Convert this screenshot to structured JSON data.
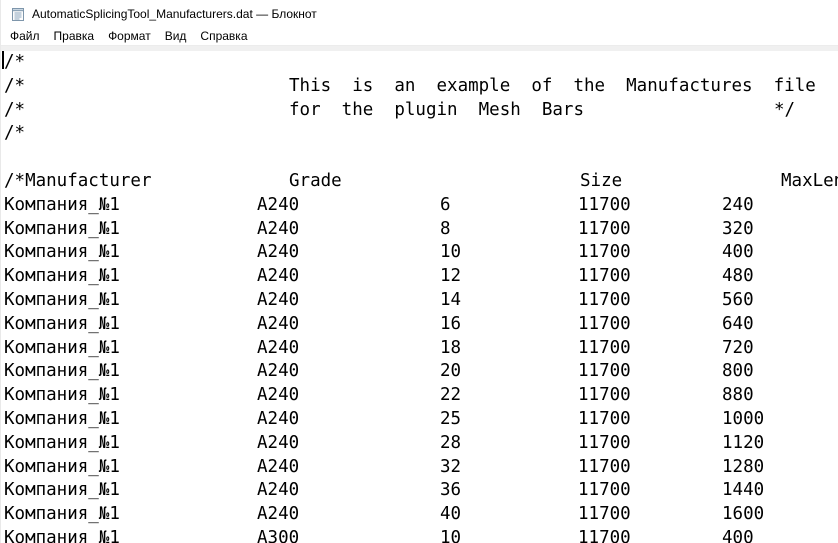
{
  "titlebar": {
    "title": "AutomaticSplicingTool_Manufacturers.dat — Блокнот"
  },
  "menubar": {
    "items": [
      {
        "label": "Файл"
      },
      {
        "label": "Правка"
      },
      {
        "label": "Формат"
      },
      {
        "label": "Вид"
      },
      {
        "label": "Справка"
      }
    ]
  },
  "editor": {
    "comment": {
      "line1": "/*",
      "line2_prefix": "/*",
      "line2_text": "This  is  an  example  of  the  Manufactures  file",
      "line3_prefix": "/*",
      "line3_text": "for  the  plugin  Mesh  Bars",
      "line3_close": "*/",
      "line4": "/*"
    },
    "table": {
      "header": {
        "manufacturer": "/*Manufacturer",
        "grade": "Grade",
        "size": "Size",
        "maxlength": "MaxLength"
      },
      "rows": [
        {
          "manufacturer": "Компания_№1",
          "grade": "А240",
          "size": "6",
          "length": "11700",
          "max": "240"
        },
        {
          "manufacturer": "Компания_№1",
          "grade": "А240",
          "size": "8",
          "length": "11700",
          "max": "320"
        },
        {
          "manufacturer": "Компания_№1",
          "grade": "А240",
          "size": "10",
          "length": "11700",
          "max": "400"
        },
        {
          "manufacturer": "Компания_№1",
          "grade": "А240",
          "size": "12",
          "length": "11700",
          "max": "480"
        },
        {
          "manufacturer": "Компания_№1",
          "grade": "А240",
          "size": "14",
          "length": "11700",
          "max": "560"
        },
        {
          "manufacturer": "Компания_№1",
          "grade": "А240",
          "size": "16",
          "length": "11700",
          "max": "640"
        },
        {
          "manufacturer": "Компания_№1",
          "grade": "А240",
          "size": "18",
          "length": "11700",
          "max": "720"
        },
        {
          "manufacturer": "Компания_№1",
          "grade": "А240",
          "size": "20",
          "length": "11700",
          "max": "800"
        },
        {
          "manufacturer": "Компания_№1",
          "grade": "А240",
          "size": "22",
          "length": "11700",
          "max": "880"
        },
        {
          "manufacturer": "Компания_№1",
          "grade": "А240",
          "size": "25",
          "length": "11700",
          "max": "1000"
        },
        {
          "manufacturer": "Компания_№1",
          "grade": "А240",
          "size": "28",
          "length": "11700",
          "max": "1120"
        },
        {
          "manufacturer": "Компания_№1",
          "grade": "А240",
          "size": "32",
          "length": "11700",
          "max": "1280"
        },
        {
          "manufacturer": "Компания_№1",
          "grade": "А240",
          "size": "36",
          "length": "11700",
          "max": "1440"
        },
        {
          "manufacturer": "Компания_№1",
          "grade": "А240",
          "size": "40",
          "length": "11700",
          "max": "1600"
        },
        {
          "manufacturer": "Компания_№1",
          "grade": "А300",
          "size": "10",
          "length": "11700",
          "max": "400"
        }
      ]
    }
  },
  "colors": {
    "text": "#000000",
    "background": "#ffffff",
    "menu_strip": "#f0f0f0"
  }
}
